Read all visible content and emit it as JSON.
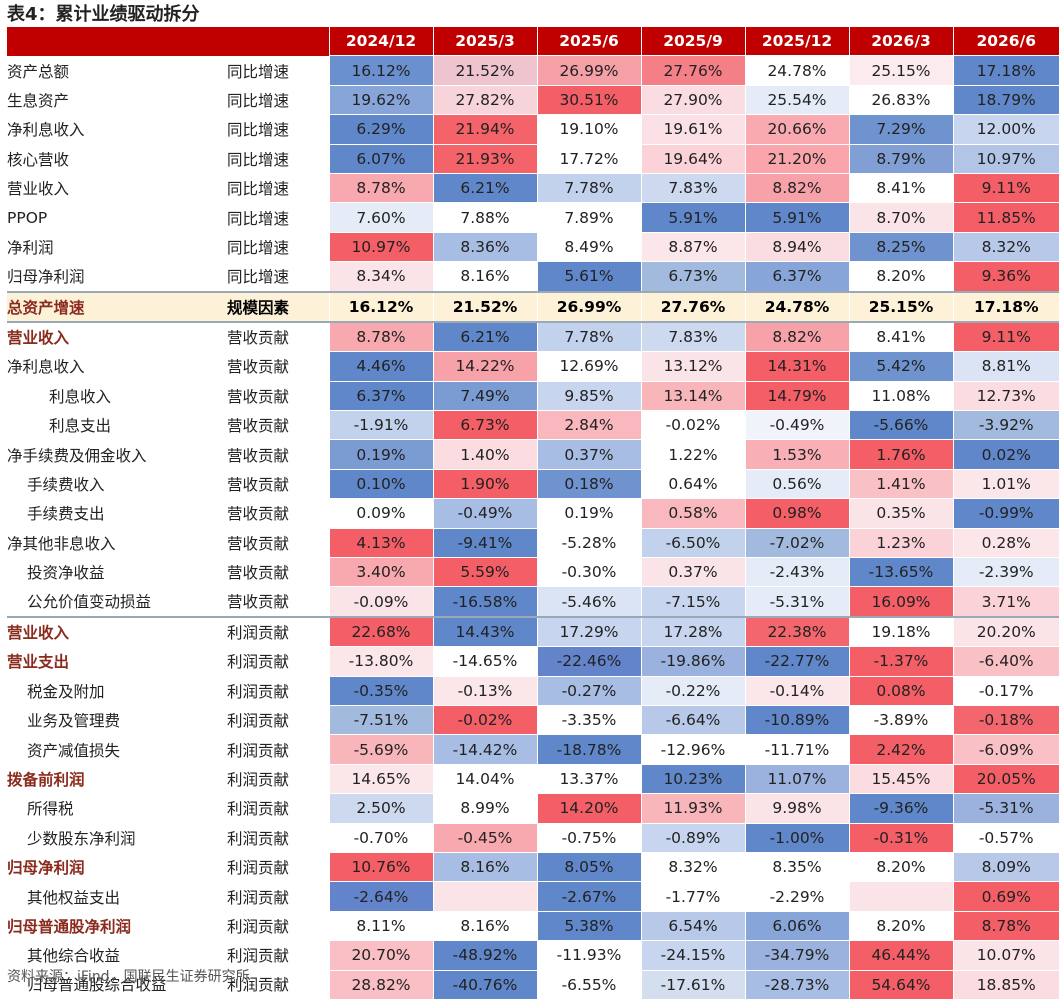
{
  "title": "表4：累计业绩驱动拆分",
  "columns": [
    "2024/12",
    "2025/3",
    "2025/6",
    "2025/9",
    "2025/12",
    "2026/3",
    "2026/6"
  ],
  "rows": [
    {
      "label": "资产总额",
      "type": "同比增速",
      "style": "normal",
      "values": [
        "16.12%",
        "21.52%",
        "26.99%",
        "27.76%",
        "24.78%",
        "25.15%",
        "17.18%"
      ],
      "colors": [
        "#6b90cf",
        "#eec4cf",
        "#f59fa6",
        "#f47f86",
        "#ffffff",
        "#fbeaee",
        "#5f87ca"
      ]
    },
    {
      "label": "生息资产",
      "type": "同比增速",
      "style": "normal",
      "values": [
        "19.62%",
        "27.82%",
        "30.51%",
        "27.90%",
        "25.54%",
        "26.83%",
        "18.79%"
      ],
      "colors": [
        "#87a5d8",
        "#f7d4da",
        "#f45e66",
        "#f9dde2",
        "#e6ecf7",
        "#ffffff",
        "#5f87ca"
      ]
    },
    {
      "label": "净利息收入",
      "type": "同比增速",
      "style": "normal",
      "values": [
        "6.29%",
        "21.94%",
        "19.10%",
        "19.61%",
        "20.66%",
        "7.29%",
        "12.00%"
      ],
      "colors": [
        "#5f87ca",
        "#f4626a",
        "#ffffff",
        "#fbe1e5",
        "#f9aab0",
        "#6f93cf",
        "#c7d5ee"
      ]
    },
    {
      "label": "核心营收",
      "type": "同比增速",
      "style": "normal",
      "values": [
        "6.07%",
        "21.93%",
        "17.72%",
        "19.64%",
        "21.20%",
        "8.79%",
        "10.97%"
      ],
      "colors": [
        "#5f87ca",
        "#f4626a",
        "#ffffff",
        "#fbd2d7",
        "#f9a5ab",
        "#819fd4",
        "#b3c5e7"
      ]
    },
    {
      "label": "营业收入",
      "type": "同比增速",
      "style": "normal",
      "values": [
        "8.78%",
        "6.21%",
        "7.78%",
        "7.83%",
        "8.82%",
        "8.41%",
        "9.11%"
      ],
      "colors": [
        "#f8a9af",
        "#5f87ca",
        "#c3d2ec",
        "#ccd9ef",
        "#f7a2a9",
        "#ffffff",
        "#f45e66"
      ]
    },
    {
      "label": "PPOP",
      "type": "同比增速",
      "style": "normal",
      "values": [
        "7.60%",
        "7.88%",
        "7.89%",
        "5.91%",
        "5.91%",
        "8.70%",
        "11.85%"
      ],
      "colors": [
        "#e6ecf7",
        "#ffffff",
        "#ffffff",
        "#5f87ca",
        "#5f87ca",
        "#fbe4e7",
        "#f45e66"
      ]
    },
    {
      "label": "净利润",
      "type": "同比增速",
      "style": "normal",
      "values": [
        "10.97%",
        "8.36%",
        "8.49%",
        "8.87%",
        "8.94%",
        "8.25%",
        "8.32%"
      ],
      "colors": [
        "#f45e66",
        "#a8bde3",
        "#ffffff",
        "#fbe6ea",
        "#fadde1",
        "#6f93cf",
        "#b7c8e8"
      ]
    },
    {
      "label": "归母净利润",
      "type": "同比增速",
      "style": "normal",
      "values": [
        "8.34%",
        "8.16%",
        "5.61%",
        "6.73%",
        "6.37%",
        "8.20%",
        "9.36%"
      ],
      "colors": [
        "#fbe4e7",
        "#ffffff",
        "#5f87ca",
        "#a3badf",
        "#87a5d8",
        "#ffffff",
        "#f45e66"
      ]
    },
    {
      "label": "总资产增速",
      "type": "规模因素",
      "style": "highlight",
      "values": [
        "16.12%",
        "21.52%",
        "26.99%",
        "27.76%",
        "24.78%",
        "25.15%",
        "17.18%"
      ],
      "colors": [
        "#fdf1d8",
        "#fdf1d8",
        "#fdf1d8",
        "#fdf1d8",
        "#fdf1d8",
        "#fdf1d8",
        "#fdf1d8"
      ]
    },
    {
      "label": "营业收入",
      "type": "营收贡献",
      "style": "section",
      "values": [
        "8.78%",
        "6.21%",
        "7.78%",
        "7.83%",
        "8.82%",
        "8.41%",
        "9.11%"
      ],
      "colors": [
        "#f8a9af",
        "#5f87ca",
        "#c3d2ec",
        "#ccd9ef",
        "#f7a2a9",
        "#ffffff",
        "#f45e66"
      ]
    },
    {
      "label": "净利息收入",
      "type": "营收贡献",
      "style": "normal",
      "values": [
        "4.46%",
        "14.22%",
        "12.69%",
        "13.12%",
        "14.31%",
        "5.42%",
        "8.81%"
      ],
      "colors": [
        "#5f87ca",
        "#f7a2a9",
        "#ffffff",
        "#fbe4e7",
        "#f45e66",
        "#6f93cf",
        "#dbe4f4"
      ]
    },
    {
      "label": "利息收入",
      "type": "营收贡献",
      "style": "indent2",
      "values": [
        "6.37%",
        "7.49%",
        "9.85%",
        "13.14%",
        "14.79%",
        "11.08%",
        "12.73%"
      ],
      "colors": [
        "#5f87ca",
        "#7b9bd3",
        "#c7d5ee",
        "#f8b6bb",
        "#f45e66",
        "#ffffff",
        "#fbdde1"
      ]
    },
    {
      "label": "利息支出",
      "type": "营收贡献",
      "style": "indent2",
      "values": [
        "-1.91%",
        "6.73%",
        "2.84%",
        "-0.02%",
        "-0.49%",
        "-5.66%",
        "-3.92%"
      ],
      "colors": [
        "#c3d2ec",
        "#f45e66",
        "#f9b8bd",
        "#ffffff",
        "#f0f4fa",
        "#5f87ca",
        "#a3badf"
      ]
    },
    {
      "label": "净手续费及佣金收入",
      "type": "营收贡献",
      "style": "normal",
      "values": [
        "0.19%",
        "1.40%",
        "0.37%",
        "1.22%",
        "1.53%",
        "1.76%",
        "0.02%"
      ],
      "colors": [
        "#7b9bd3",
        "#fbdde1",
        "#a8bde3",
        "#ffffff",
        "#f8b0b6",
        "#f45e66",
        "#5f87ca"
      ]
    },
    {
      "label": "手续费收入",
      "type": "营收贡献",
      "style": "indent1",
      "values": [
        "0.10%",
        "1.90%",
        "0.18%",
        "0.64%",
        "0.56%",
        "1.41%",
        "1.01%"
      ],
      "colors": [
        "#5f87ca",
        "#f45e66",
        "#6f93cf",
        "#ffffff",
        "#e6ecf7",
        "#f9c1c6",
        "#fbe6ea"
      ]
    },
    {
      "label": "手续费支出",
      "type": "营收贡献",
      "style": "indent1",
      "values": [
        "0.09%",
        "-0.49%",
        "0.19%",
        "0.58%",
        "0.98%",
        "0.35%",
        "-0.99%"
      ],
      "colors": [
        "#ffffff",
        "#a8bde3",
        "#ffffff",
        "#f9b8bd",
        "#f45e66",
        "#fbe4e7",
        "#5f87ca"
      ]
    },
    {
      "label": "净其他非息收入",
      "type": "营收贡献",
      "style": "normal",
      "values": [
        "4.13%",
        "-9.41%",
        "-5.28%",
        "-6.50%",
        "-7.02%",
        "1.23%",
        "0.28%"
      ],
      "colors": [
        "#f45e66",
        "#5f87ca",
        "#ffffff",
        "#c3d2ec",
        "#a3badf",
        "#fbd2d7",
        "#fbe6ea"
      ]
    },
    {
      "label": "投资净收益",
      "type": "营收贡献",
      "style": "indent1",
      "values": [
        "3.40%",
        "5.59%",
        "-0.30%",
        "0.37%",
        "-2.43%",
        "-13.65%",
        "-2.39%"
      ],
      "colors": [
        "#f8a9af",
        "#f45e66",
        "#ffffff",
        "#fbe4e7",
        "#e6ecf7",
        "#5f87ca",
        "#e6ecf7"
      ]
    },
    {
      "label": "公允价值变动损益",
      "type": "营收贡献",
      "style": "indent1",
      "values": [
        "-0.09%",
        "-16.58%",
        "-5.46%",
        "-7.15%",
        "-5.31%",
        "16.09%",
        "3.71%"
      ],
      "colors": [
        "#fbe4e7",
        "#5f87ca",
        "#dbe4f4",
        "#c7d5ee",
        "#e6ecf7",
        "#f45e66",
        "#fbd2d7"
      ]
    },
    {
      "label": "营业收入",
      "type": "利润贡献",
      "style": "section",
      "values": [
        "22.68%",
        "14.43%",
        "17.29%",
        "17.28%",
        "22.38%",
        "19.18%",
        "20.20%"
      ],
      "colors": [
        "#f45e66",
        "#5f87ca",
        "#c7d5ee",
        "#c7d5ee",
        "#f4666e",
        "#ffffff",
        "#fbe4e7"
      ]
    },
    {
      "label": "营业支出",
      "type": "利润贡献",
      "style": "section",
      "values": [
        "-13.80%",
        "-14.65%",
        "-22.46%",
        "-19.86%",
        "-22.77%",
        "-1.37%",
        "-6.40%"
      ],
      "colors": [
        "#fbe6ea",
        "#ffffff",
        "#6384cb",
        "#9ab2dd",
        "#5f87ca",
        "#f45e66",
        "#f9c1c6"
      ]
    },
    {
      "label": "税金及附加",
      "type": "利润贡献",
      "style": "indent1",
      "values": [
        "-0.35%",
        "-0.13%",
        "-0.27%",
        "-0.22%",
        "-0.14%",
        "0.08%",
        "-0.17%"
      ],
      "colors": [
        "#5f87ca",
        "#fbe6ea",
        "#a8bde3",
        "#e6ecf7",
        "#fbe6ea",
        "#f45e66",
        "#ffffff"
      ]
    },
    {
      "label": "业务及管理费",
      "type": "利润贡献",
      "style": "indent1",
      "values": [
        "-7.51%",
        "-0.02%",
        "-3.35%",
        "-6.64%",
        "-10.89%",
        "-3.89%",
        "-0.18%"
      ],
      "colors": [
        "#a3badf",
        "#f45e66",
        "#ffffff",
        "#b7c8e8",
        "#5f87ca",
        "#ffffff",
        "#f4666e"
      ]
    },
    {
      "label": "资产减值损失",
      "type": "利润贡献",
      "style": "indent1",
      "values": [
        "-5.69%",
        "-14.42%",
        "-18.78%",
        "-12.96%",
        "-11.71%",
        "2.42%",
        "-6.09%"
      ],
      "colors": [
        "#f8b6bb",
        "#a8bde3",
        "#5f87ca",
        "#ffffff",
        "#ffffff",
        "#f45e66",
        "#f9c1c6"
      ]
    },
    {
      "label": "拨备前利润",
      "type": "利润贡献",
      "style": "section",
      "values": [
        "14.65%",
        "14.04%",
        "13.37%",
        "10.23%",
        "11.07%",
        "15.45%",
        "20.05%"
      ],
      "colors": [
        "#fbe6ea",
        "#ffffff",
        "#ffffff",
        "#5f87ca",
        "#9ab2dd",
        "#fbdde1",
        "#f45e66"
      ]
    },
    {
      "label": "所得税",
      "type": "利润贡献",
      "style": "indent1",
      "values": [
        "2.50%",
        "8.99%",
        "14.20%",
        "11.93%",
        "9.98%",
        "-9.36%",
        "-5.31%"
      ],
      "colors": [
        "#ccd9ef",
        "#ffffff",
        "#f45e66",
        "#f8b6bb",
        "#fbe4e7",
        "#5f87ca",
        "#9ab2dd"
      ]
    },
    {
      "label": "少数股东净利润",
      "type": "利润贡献",
      "style": "indent1",
      "values": [
        "-0.70%",
        "-0.45%",
        "-0.75%",
        "-0.89%",
        "-1.00%",
        "-0.31%",
        "-0.57%"
      ],
      "colors": [
        "#ffffff",
        "#f8a9af",
        "#ffffff",
        "#c7d5ee",
        "#5f87ca",
        "#f45e66",
        "#ffffff"
      ]
    },
    {
      "label": "归母净利润",
      "type": "利润贡献",
      "style": "section",
      "values": [
        "10.76%",
        "8.16%",
        "8.05%",
        "8.32%",
        "8.35%",
        "8.20%",
        "8.09%"
      ],
      "colors": [
        "#f45e66",
        "#a8bde3",
        "#5f87ca",
        "#ffffff",
        "#ffffff",
        "#ffffff",
        "#b7c8e8"
      ]
    },
    {
      "label": "其他权益支出",
      "type": "利润贡献",
      "style": "indent1",
      "values": [
        "-2.64%",
        "",
        "-2.67%",
        "-1.77%",
        "-2.29%",
        "",
        "0.69%"
      ],
      "colors": [
        "#6384cb",
        "#fbe4e7",
        "#5f87ca",
        "#ffffff",
        "#ffffff",
        "#fbe4e7",
        "#f45e66"
      ]
    },
    {
      "label": "归母普通股净利润",
      "type": "利润贡献",
      "style": "section",
      "values": [
        "8.11%",
        "8.16%",
        "5.38%",
        "6.54%",
        "6.06%",
        "8.20%",
        "8.78%"
      ],
      "colors": [
        "#ffffff",
        "#ffffff",
        "#5f87ca",
        "#b7c8e8",
        "#87a5d8",
        "#ffffff",
        "#f45e66"
      ]
    },
    {
      "label": "其他综合收益",
      "type": "利润贡献",
      "style": "indent1",
      "values": [
        "20.70%",
        "-48.92%",
        "-11.93%",
        "-24.15%",
        "-34.79%",
        "46.44%",
        "10.07%"
      ],
      "colors": [
        "#f9bfc4",
        "#5f87ca",
        "#ffffff",
        "#c7d5ee",
        "#9ab2dd",
        "#f45e66",
        "#fbe4e7"
      ]
    },
    {
      "label": "归母普通股综合收益",
      "type": "利润贡献",
      "style": "indent1",
      "values": [
        "28.82%",
        "-40.76%",
        "-6.55%",
        "-17.61%",
        "-28.73%",
        "54.64%",
        "18.85%"
      ],
      "colors": [
        "#f9bfc4",
        "#5f87ca",
        "#ffffff",
        "#d3deef",
        "#a8bde3",
        "#f45e66",
        "#fbdde1"
      ]
    }
  ],
  "footer": "资料来源：iFind，国联民生证券研究所"
}
